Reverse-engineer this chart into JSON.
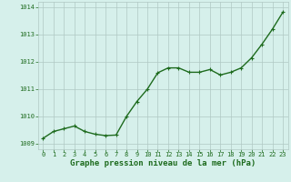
{
  "x": [
    0,
    1,
    2,
    3,
    4,
    5,
    6,
    7,
    8,
    9,
    10,
    11,
    12,
    13,
    14,
    15,
    16,
    17,
    18,
    19,
    20,
    21,
    22,
    23
  ],
  "y": [
    1009.2,
    1009.45,
    1009.55,
    1009.65,
    1009.45,
    1009.35,
    1009.3,
    1009.32,
    1010.0,
    1010.55,
    1011.0,
    1011.6,
    1011.78,
    1011.78,
    1011.62,
    1011.62,
    1011.72,
    1011.52,
    1011.62,
    1011.78,
    1012.15,
    1012.65,
    1013.2,
    1013.82
  ],
  "line_color": "#1e6b1e",
  "marker_color": "#1e6b1e",
  "background_color": "#d6f0eb",
  "grid_color": "#b0c8c4",
  "xlabel": "Graphe pression niveau de la mer (hPa)",
  "xlabel_color": "#1e6b1e",
  "ylim": [
    1008.8,
    1014.2
  ],
  "xlim": [
    -0.5,
    23.5
  ],
  "yticks": [
    1009,
    1010,
    1011,
    1012,
    1013,
    1014
  ],
  "xticks": [
    0,
    1,
    2,
    3,
    4,
    5,
    6,
    7,
    8,
    9,
    10,
    11,
    12,
    13,
    14,
    15,
    16,
    17,
    18,
    19,
    20,
    21,
    22,
    23
  ],
  "tick_color": "#1e6b1e",
  "tick_fontsize": 5.0,
  "xlabel_fontsize": 6.5,
  "line_width": 1.0,
  "marker_size": 2.5
}
